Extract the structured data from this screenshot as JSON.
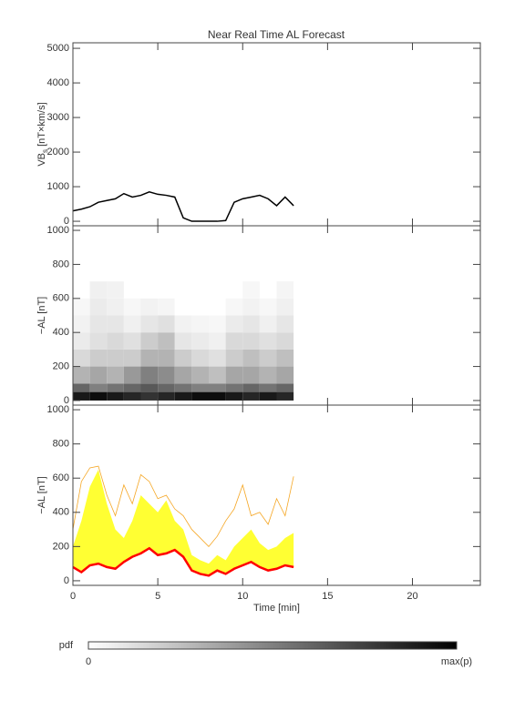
{
  "chart_data": [
    {
      "type": "line",
      "title": "Near Real Time AL Forecast",
      "ylabel_parts": [
        "VB",
        "s",
        " [nT×km/s]"
      ],
      "color": "#000000",
      "x": [
        0,
        0.5,
        1,
        1.5,
        2,
        2.5,
        3,
        3.5,
        4,
        4.5,
        5,
        5.5,
        6,
        6.5,
        7,
        7.5,
        8,
        8.5,
        9,
        9.5,
        10,
        10.5,
        11,
        11.5,
        12,
        12.5,
        13
      ],
      "values": [
        300,
        350,
        420,
        550,
        600,
        650,
        800,
        700,
        750,
        850,
        780,
        750,
        700,
        100,
        0,
        0,
        0,
        0,
        20,
        550,
        650,
        700,
        750,
        650,
        450,
        700,
        450
      ],
      "xlim": [
        0,
        24
      ],
      "xticks": [
        0,
        5,
        10,
        15,
        20
      ],
      "ylim": [
        -130,
        5160
      ],
      "yticks": [
        0,
        1000,
        2000,
        3000,
        4000,
        5000
      ]
    },
    {
      "type": "heatmap",
      "ylabel": "−AL [nT]",
      "xbins": [
        0,
        1,
        2,
        3,
        4,
        5,
        6,
        7,
        8,
        9,
        10,
        11,
        12,
        13
      ],
      "ybins": [
        0,
        50,
        100,
        200,
        300,
        400,
        500,
        600,
        700
      ],
      "pdf": [
        [
          0.9,
          0.6,
          0.3,
          0.15,
          0.08,
          0.05,
          0.03,
          0
        ],
        [
          0.95,
          0.5,
          0.35,
          0.2,
          0.12,
          0.1,
          0.08,
          0.06
        ],
        [
          0.9,
          0.55,
          0.3,
          0.2,
          0.15,
          0.1,
          0.06,
          0.05
        ],
        [
          0.85,
          0.6,
          0.4,
          0.2,
          0.12,
          0.06,
          0.03,
          0
        ],
        [
          0.8,
          0.65,
          0.5,
          0.3,
          0.2,
          0.1,
          0.05,
          0
        ],
        [
          0.85,
          0.6,
          0.45,
          0.3,
          0.25,
          0.12,
          0.04,
          0
        ],
        [
          0.9,
          0.55,
          0.35,
          0.2,
          0.1,
          0.05,
          0,
          0
        ],
        [
          0.95,
          0.5,
          0.3,
          0.15,
          0.08,
          0.04,
          0,
          0
        ],
        [
          0.95,
          0.5,
          0.25,
          0.12,
          0.06,
          0.03,
          0,
          0
        ],
        [
          0.9,
          0.55,
          0.35,
          0.2,
          0.15,
          0.08,
          0.03,
          0
        ],
        [
          0.85,
          0.6,
          0.35,
          0.25,
          0.15,
          0.1,
          0.05,
          0.03
        ],
        [
          0.9,
          0.55,
          0.3,
          0.2,
          0.12,
          0.06,
          0.03,
          0
        ],
        [
          0.85,
          0.6,
          0.35,
          0.25,
          0.15,
          0.1,
          0.06,
          0.04
        ]
      ],
      "xlim": [
        0,
        24
      ],
      "xticks": [
        0,
        5,
        10,
        15,
        20
      ],
      "ylim": [
        -27,
        1027
      ],
      "yticks": [
        0,
        200,
        400,
        600,
        800,
        1000
      ]
    },
    {
      "type": "band",
      "ylabel": "−AL [nT]",
      "xlabel": "Time [min]",
      "x": [
        0,
        0.5,
        1,
        1.5,
        2,
        2.5,
        3,
        3.5,
        4,
        4.5,
        5,
        5.5,
        6,
        6.5,
        7,
        7.5,
        8,
        8.5,
        9,
        9.5,
        10,
        10.5,
        11,
        11.5,
        12,
        12.5,
        13
      ],
      "series": [
        {
          "name": "median",
          "color": "#ff0000",
          "values": [
            80,
            50,
            90,
            100,
            80,
            70,
            110,
            140,
            160,
            190,
            150,
            160,
            180,
            140,
            60,
            40,
            30,
            60,
            40,
            70,
            90,
            110,
            80,
            60,
            70,
            90,
            80
          ]
        },
        {
          "name": "upper",
          "color": "#ffff33",
          "values": [
            200,
            350,
            550,
            650,
            450,
            300,
            250,
            350,
            500,
            450,
            400,
            470,
            350,
            300,
            150,
            120,
            100,
            150,
            120,
            200,
            250,
            300,
            220,
            180,
            200,
            250,
            280
          ]
        },
        {
          "name": "max",
          "color": "#f5a623",
          "values": [
            300,
            580,
            660,
            670,
            500,
            380,
            560,
            450,
            620,
            580,
            480,
            500,
            420,
            380,
            300,
            250,
            200,
            260,
            350,
            420,
            560,
            380,
            400,
            330,
            480,
            380,
            610
          ]
        }
      ],
      "xlim": [
        0,
        24
      ],
      "xticks": [
        0,
        5,
        10,
        15,
        20
      ],
      "ylim": [
        -27,
        1027
      ],
      "yticks": [
        0,
        200,
        400,
        600,
        800,
        1000
      ]
    }
  ],
  "colorbar": {
    "label": "pdf",
    "min_label": "0",
    "max_label": "max(p)"
  }
}
